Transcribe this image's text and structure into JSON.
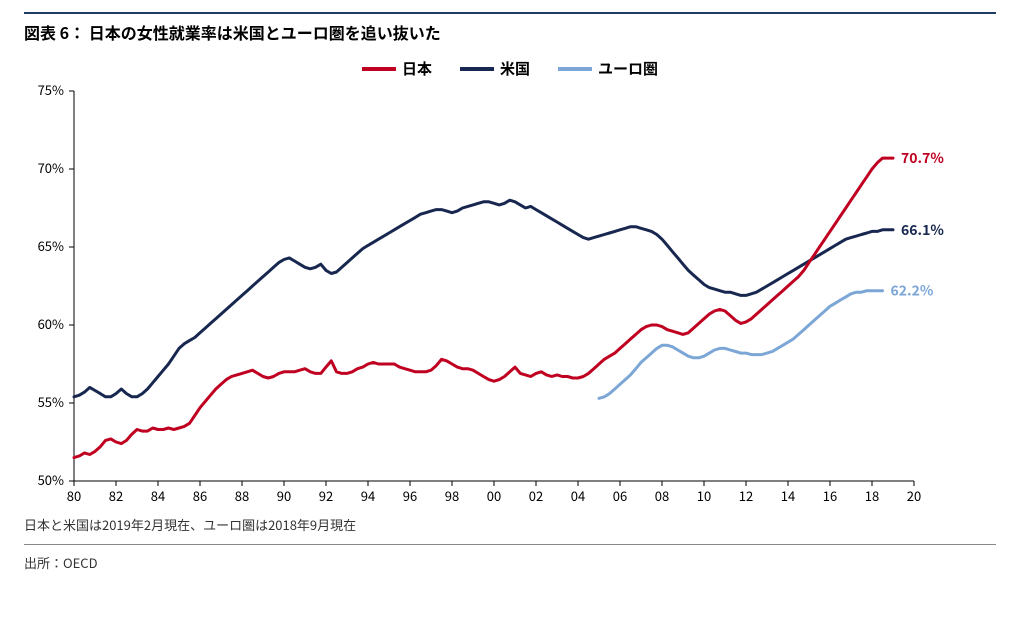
{
  "chart": {
    "type": "line",
    "title": "図表 6： 日本の女性就業率は米国とユーロ圏を追い抜いた",
    "footnote": "日本と米国は2019年2月現在、ユーロ圏は2018年9月現在",
    "source": "出所：OECD",
    "background_color": "#ffffff",
    "title_bar_color": "#1f3b63",
    "x": {
      "min": 80,
      "max": 20,
      "start_year": 1980,
      "end_year": 2020,
      "tick_step_years": 2,
      "tick_labels": [
        "80",
        "82",
        "84",
        "86",
        "88",
        "90",
        "92",
        "94",
        "96",
        "98",
        "00",
        "02",
        "04",
        "06",
        "08",
        "10",
        "12",
        "14",
        "16",
        "18",
        "20"
      ]
    },
    "y": {
      "min": 50,
      "max": 75,
      "tick_step": 5,
      "suffix": "%",
      "tick_labels": [
        "50%",
        "55%",
        "60%",
        "65%",
        "70%",
        "75%"
      ]
    },
    "axis_color": "#000000",
    "axis_width": 1,
    "tick_font_size": 13,
    "line_width": 3,
    "legend": {
      "items": [
        {
          "key": "japan",
          "label": "日本"
        },
        {
          "key": "us",
          "label": "米国"
        },
        {
          "key": "euro",
          "label": "ユーロ圏"
        }
      ]
    },
    "series": {
      "japan": {
        "label": "日本",
        "color": "#c00020",
        "end_label": "70.7%",
        "end_label_color": "#c00020",
        "start_year": 1980,
        "values": [
          51.5,
          51.6,
          51.8,
          51.7,
          51.9,
          52.2,
          52.6,
          52.7,
          52.5,
          52.4,
          52.6,
          53.0,
          53.3,
          53.2,
          53.2,
          53.4,
          53.3,
          53.3,
          53.4,
          53.3,
          53.4,
          53.5,
          53.7,
          54.2,
          54.7,
          55.1,
          55.5,
          55.9,
          56.2,
          56.5,
          56.7,
          56.8,
          56.9,
          57.0,
          57.1,
          56.9,
          56.7,
          56.6,
          56.7,
          56.9,
          57.0,
          57.0,
          57.0,
          57.1,
          57.2,
          57.0,
          56.9,
          56.9,
          57.3,
          57.7,
          57.0,
          56.9,
          56.9,
          57.0,
          57.2,
          57.3,
          57.5,
          57.6,
          57.5,
          57.5,
          57.5,
          57.5,
          57.3,
          57.2,
          57.1,
          57.0,
          57.0,
          57.0,
          57.1,
          57.4,
          57.8,
          57.7,
          57.5,
          57.3,
          57.2,
          57.2,
          57.1,
          56.9,
          56.7,
          56.5,
          56.4,
          56.5,
          56.7,
          57.0,
          57.3,
          56.9,
          56.8,
          56.7,
          56.9,
          57.0,
          56.8,
          56.7,
          56.8,
          56.7,
          56.7,
          56.6,
          56.6,
          56.7,
          56.9,
          57.2,
          57.5,
          57.8,
          58.0,
          58.2,
          58.5,
          58.8,
          59.1,
          59.4,
          59.7,
          59.9,
          60.0,
          60.0,
          59.9,
          59.7,
          59.6,
          59.5,
          59.4,
          59.5,
          59.8,
          60.1,
          60.4,
          60.7,
          60.9,
          61.0,
          60.9,
          60.6,
          60.3,
          60.1,
          60.2,
          60.4,
          60.7,
          61.0,
          61.3,
          61.6,
          61.9,
          62.2,
          62.5,
          62.8,
          63.1,
          63.5,
          64.0,
          64.5,
          65.0,
          65.5,
          66.0,
          66.5,
          67.0,
          67.5,
          68.0,
          68.5,
          69.0,
          69.5,
          70.0,
          70.4,
          70.7,
          70.7,
          70.7
        ]
      },
      "us": {
        "label": "米国",
        "color": "#17274f",
        "end_label": "66.1%",
        "end_label_color": "#17274f",
        "start_year": 1980,
        "values": [
          55.4,
          55.5,
          55.7,
          56.0,
          55.8,
          55.6,
          55.4,
          55.4,
          55.6,
          55.9,
          55.6,
          55.4,
          55.4,
          55.6,
          55.9,
          56.3,
          56.7,
          57.1,
          57.5,
          58.0,
          58.5,
          58.8,
          59.0,
          59.2,
          59.5,
          59.8,
          60.1,
          60.4,
          60.7,
          61.0,
          61.3,
          61.6,
          61.9,
          62.2,
          62.5,
          62.8,
          63.1,
          63.4,
          63.7,
          64.0,
          64.2,
          64.3,
          64.1,
          63.9,
          63.7,
          63.6,
          63.7,
          63.9,
          63.5,
          63.3,
          63.4,
          63.7,
          64.0,
          64.3,
          64.6,
          64.9,
          65.1,
          65.3,
          65.5,
          65.7,
          65.9,
          66.1,
          66.3,
          66.5,
          66.7,
          66.9,
          67.1,
          67.2,
          67.3,
          67.4,
          67.4,
          67.3,
          67.2,
          67.3,
          67.5,
          67.6,
          67.7,
          67.8,
          67.9,
          67.9,
          67.8,
          67.7,
          67.8,
          68.0,
          67.9,
          67.7,
          67.5,
          67.6,
          67.4,
          67.2,
          67.0,
          66.8,
          66.6,
          66.4,
          66.2,
          66.0,
          65.8,
          65.6,
          65.5,
          65.6,
          65.7,
          65.8,
          65.9,
          66.0,
          66.1,
          66.2,
          66.3,
          66.3,
          66.2,
          66.1,
          66.0,
          65.8,
          65.5,
          65.1,
          64.7,
          64.3,
          63.9,
          63.5,
          63.2,
          62.9,
          62.6,
          62.4,
          62.3,
          62.2,
          62.1,
          62.1,
          62.0,
          61.9,
          61.9,
          62.0,
          62.1,
          62.3,
          62.5,
          62.7,
          62.9,
          63.1,
          63.3,
          63.5,
          63.7,
          63.9,
          64.1,
          64.3,
          64.5,
          64.7,
          64.9,
          65.1,
          65.3,
          65.5,
          65.6,
          65.7,
          65.8,
          65.9,
          66.0,
          66.0,
          66.1,
          66.1,
          66.1
        ]
      },
      "euro": {
        "label": "ユーロ圏",
        "color": "#7ba6d6",
        "end_label": "62.2%",
        "end_label_color": "#7ba6d6",
        "start_year": 2005,
        "values": [
          55.3,
          55.4,
          55.6,
          55.9,
          56.2,
          56.5,
          56.8,
          57.2,
          57.6,
          57.9,
          58.2,
          58.5,
          58.7,
          58.7,
          58.6,
          58.4,
          58.2,
          58.0,
          57.9,
          57.9,
          58.0,
          58.2,
          58.4,
          58.5,
          58.5,
          58.4,
          58.3,
          58.2,
          58.2,
          58.1,
          58.1,
          58.1,
          58.2,
          58.3,
          58.5,
          58.7,
          58.9,
          59.1,
          59.4,
          59.7,
          60.0,
          60.3,
          60.6,
          60.9,
          61.2,
          61.4,
          61.6,
          61.8,
          62.0,
          62.1,
          62.1,
          62.2,
          62.2,
          62.2,
          62.2
        ]
      }
    }
  }
}
